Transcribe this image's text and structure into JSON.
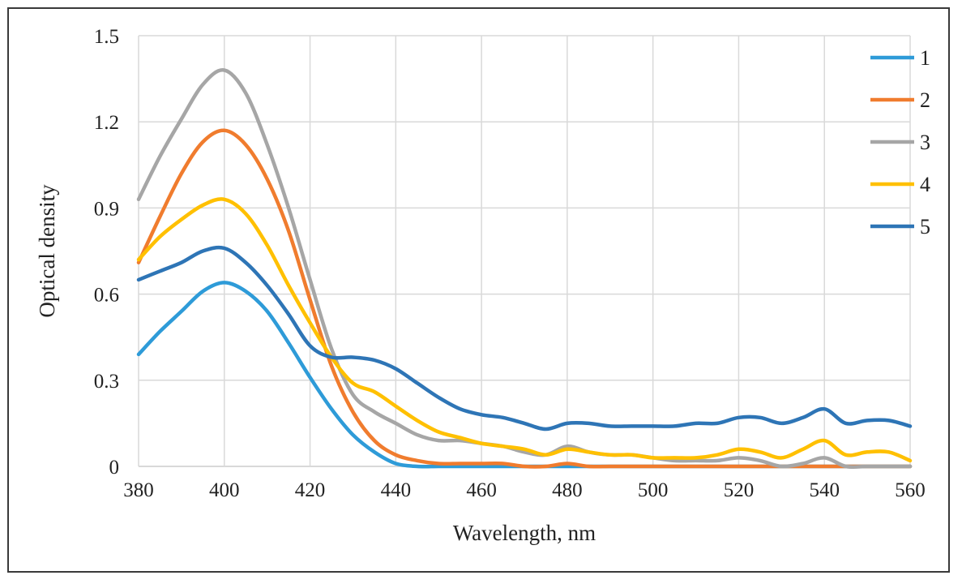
{
  "chart_data": {
    "type": "line",
    "title": "",
    "xlabel": "Wavelength, nm",
    "ylabel": "Optical density",
    "xlim": [
      380,
      560
    ],
    "ylim": [
      0,
      1.5
    ],
    "x_ticks": [
      "380",
      "400",
      "420",
      "440",
      "460",
      "480",
      "500",
      "520",
      "540",
      "560"
    ],
    "y_ticks": [
      "0",
      "0.3",
      "0.6",
      "0.9",
      "1.2",
      "1.5"
    ],
    "grid": true,
    "legend_position": "right",
    "x": [
      380,
      385,
      390,
      395,
      400,
      405,
      410,
      415,
      420,
      425,
      430,
      435,
      440,
      445,
      450,
      455,
      460,
      465,
      470,
      475,
      480,
      485,
      490,
      495,
      500,
      505,
      510,
      515,
      520,
      525,
      530,
      535,
      540,
      545,
      550,
      555,
      560
    ],
    "series": [
      {
        "name": "1",
        "color": "#2E9BD8",
        "values": [
          0.39,
          0.47,
          0.54,
          0.61,
          0.64,
          0.61,
          0.54,
          0.43,
          0.31,
          0.2,
          0.11,
          0.05,
          0.01,
          0.0,
          0.0,
          0.0,
          0.0,
          0.0,
          0.0,
          0.0,
          0.0,
          0.0,
          0.0,
          0.0,
          0.0,
          0.0,
          0.0,
          0.0,
          0.0,
          0.0,
          0.0,
          0.0,
          0.0,
          0.0,
          0.0,
          0.0,
          0.0
        ]
      },
      {
        "name": "2",
        "color": "#F07C2E",
        "values": [
          0.71,
          0.87,
          1.02,
          1.13,
          1.17,
          1.12,
          1.0,
          0.82,
          0.58,
          0.35,
          0.19,
          0.09,
          0.04,
          0.02,
          0.01,
          0.01,
          0.01,
          0.01,
          0.0,
          0.0,
          0.01,
          0.0,
          0.0,
          0.0,
          0.0,
          0.0,
          0.0,
          0.0,
          0.0,
          0.0,
          0.0,
          0.0,
          0.0,
          0.0,
          0.0,
          0.0,
          0.0
        ]
      },
      {
        "name": "3",
        "color": "#A6A6A6",
        "values": [
          0.93,
          1.08,
          1.21,
          1.33,
          1.38,
          1.3,
          1.12,
          0.9,
          0.65,
          0.41,
          0.25,
          0.19,
          0.15,
          0.11,
          0.09,
          0.09,
          0.08,
          0.07,
          0.05,
          0.04,
          0.07,
          0.05,
          0.04,
          0.04,
          0.03,
          0.02,
          0.02,
          0.02,
          0.03,
          0.02,
          0.0,
          0.01,
          0.03,
          0.0,
          0.0,
          0.0,
          0.0
        ]
      },
      {
        "name": "4",
        "color": "#FFC000",
        "values": [
          0.72,
          0.8,
          0.86,
          0.91,
          0.93,
          0.88,
          0.77,
          0.63,
          0.5,
          0.38,
          0.29,
          0.26,
          0.21,
          0.16,
          0.12,
          0.1,
          0.08,
          0.07,
          0.06,
          0.04,
          0.06,
          0.05,
          0.04,
          0.04,
          0.03,
          0.03,
          0.03,
          0.04,
          0.06,
          0.05,
          0.03,
          0.06,
          0.09,
          0.04,
          0.05,
          0.05,
          0.02
        ]
      },
      {
        "name": "5",
        "color": "#2E75B6",
        "values": [
          0.65,
          0.68,
          0.71,
          0.75,
          0.76,
          0.71,
          0.63,
          0.53,
          0.42,
          0.38,
          0.38,
          0.37,
          0.34,
          0.29,
          0.24,
          0.2,
          0.18,
          0.17,
          0.15,
          0.13,
          0.15,
          0.15,
          0.14,
          0.14,
          0.14,
          0.14,
          0.15,
          0.15,
          0.17,
          0.17,
          0.15,
          0.17,
          0.2,
          0.15,
          0.16,
          0.16,
          0.14
        ]
      }
    ]
  }
}
